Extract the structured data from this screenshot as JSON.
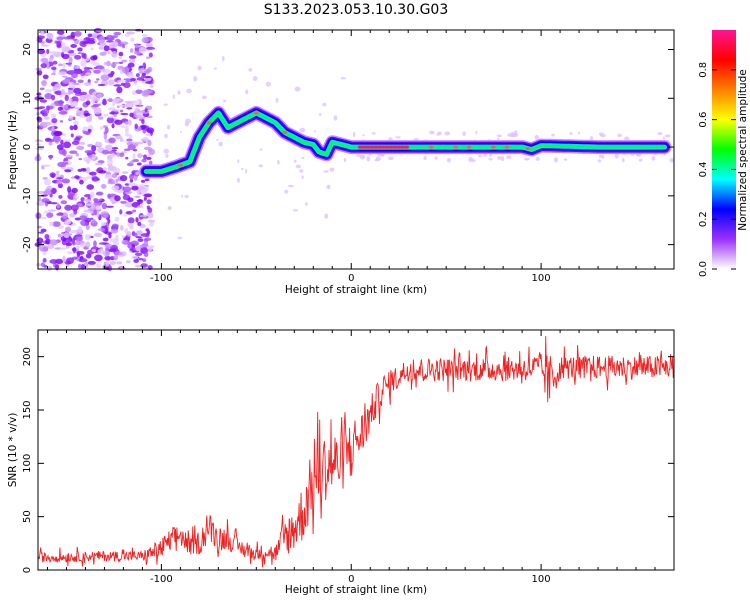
{
  "title": "S133.2023.053.10.30.G03",
  "chart_data": [
    {
      "type": "heatmap",
      "xlabel": "Height of straight line (km)",
      "ylabel": "Frequency (Hz)",
      "xlim": [
        -165,
        170
      ],
      "ylim": [
        -25,
        24
      ],
      "xticks": [
        -100,
        0,
        100
      ],
      "yticks": [
        -20,
        -10,
        0,
        10,
        20
      ],
      "grid": false,
      "colorbar": {
        "label": "Normalized spectral amplitude",
        "range": [
          0,
          0.96
        ],
        "ticks": [
          0.0,
          0.2,
          0.4,
          0.6,
          0.8
        ],
        "colors": [
          "#ffffff",
          "#9b30ff",
          "#0000ff",
          "#00ffff",
          "#00ff00",
          "#ffff00",
          "#ff8000",
          "#ff0000",
          "#ff1493"
        ]
      },
      "ridge": {
        "x": [
          -108,
          -100,
          -92,
          -85,
          -80,
          -75,
          -70,
          -65,
          -60,
          -55,
          -50,
          -45,
          -40,
          -35,
          -30,
          -25,
          -20,
          -17,
          -13,
          -10,
          -5,
          0,
          10,
          30,
          60,
          90,
          95,
          100,
          130,
          165
        ],
        "y": [
          -5,
          -5,
          -4,
          -3,
          2,
          5,
          7,
          4,
          5,
          6,
          7,
          6,
          5,
          3,
          2,
          1,
          0.5,
          -1,
          -1.5,
          1,
          0.5,
          0,
          0,
          0,
          0,
          0,
          -0.5,
          0.3,
          0,
          0
        ]
      },
      "noise_region_x": [
        -165,
        -105
      ]
    },
    {
      "type": "line",
      "xlabel": "Height of straight line (km)",
      "ylabel": "SNR (10 * v/v)",
      "xlim": [
        -165,
        170
      ],
      "ylim": [
        0,
        225
      ],
      "xticks": [
        -100,
        0,
        100
      ],
      "yticks": [
        0,
        50,
        100,
        150,
        200
      ],
      "grid": false,
      "series": [
        {
          "color": "#ee2222",
          "x": [
            -165,
            -150,
            -135,
            -120,
            -110,
            -100,
            -95,
            -90,
            -85,
            -80,
            -75,
            -70,
            -65,
            -60,
            -55,
            -50,
            -45,
            -40,
            -35,
            -30,
            -25,
            -20,
            -15,
            -10,
            -5,
            0,
            5,
            10,
            15,
            20,
            25,
            30,
            40,
            50,
            60,
            80,
            100,
            104,
            110,
            130,
            150,
            170
          ],
          "y": [
            12,
            12,
            13,
            13,
            13,
            20,
            28,
            33,
            22,
            26,
            40,
            30,
            30,
            22,
            18,
            15,
            18,
            15,
            30,
            40,
            55,
            85,
            95,
            100,
            100,
            118,
            125,
            145,
            165,
            175,
            182,
            188,
            188,
            188,
            188,
            188,
            190,
            175,
            190,
            190,
            190,
            190
          ],
          "noise_amplitude": [
            6,
            6,
            6,
            6,
            6,
            12,
            14,
            14,
            10,
            14,
            18,
            14,
            14,
            10,
            10,
            8,
            10,
            10,
            22,
            28,
            35,
            40,
            40,
            40,
            35,
            30,
            28,
            22,
            18,
            14,
            14,
            14,
            14,
            14,
            14,
            14,
            16,
            35,
            14,
            14,
            14,
            14
          ]
        }
      ]
    }
  ]
}
